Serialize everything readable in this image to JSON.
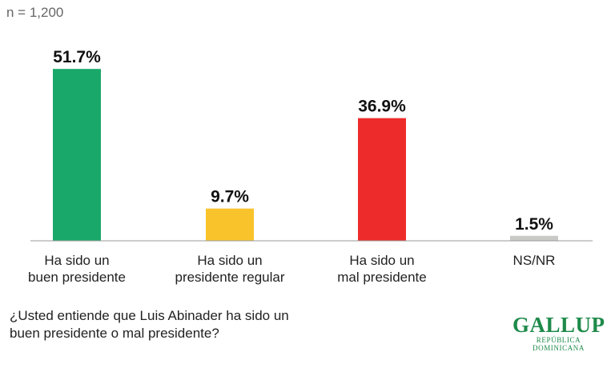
{
  "sample_size": "n = 1,200",
  "question": "¿Usted entiende que Luis Abinader ha sido un buen presidente o mal presidente?",
  "logo": {
    "name": "GALLUP",
    "subtitle": "REPÚBLICA DOMINICANA",
    "color": "#1e8a4a"
  },
  "chart_data": {
    "type": "bar",
    "categories": [
      [
        "Ha sido un",
        "buen presidente"
      ],
      [
        "Ha sido un",
        "presidente regular"
      ],
      [
        "Ha sido un",
        "mal presidente"
      ],
      [
        "NS/NR"
      ]
    ],
    "values": [
      51.7,
      9.7,
      36.9,
      1.5
    ],
    "value_labels": [
      "51.7%",
      "9.7%",
      "36.9%",
      "1.5%"
    ],
    "colors": [
      "#1aa86a",
      "#f9c32c",
      "#ee2b2b",
      "#c9c9c5"
    ],
    "ylim": [
      0,
      58
    ],
    "grid": false,
    "legend": "none"
  }
}
